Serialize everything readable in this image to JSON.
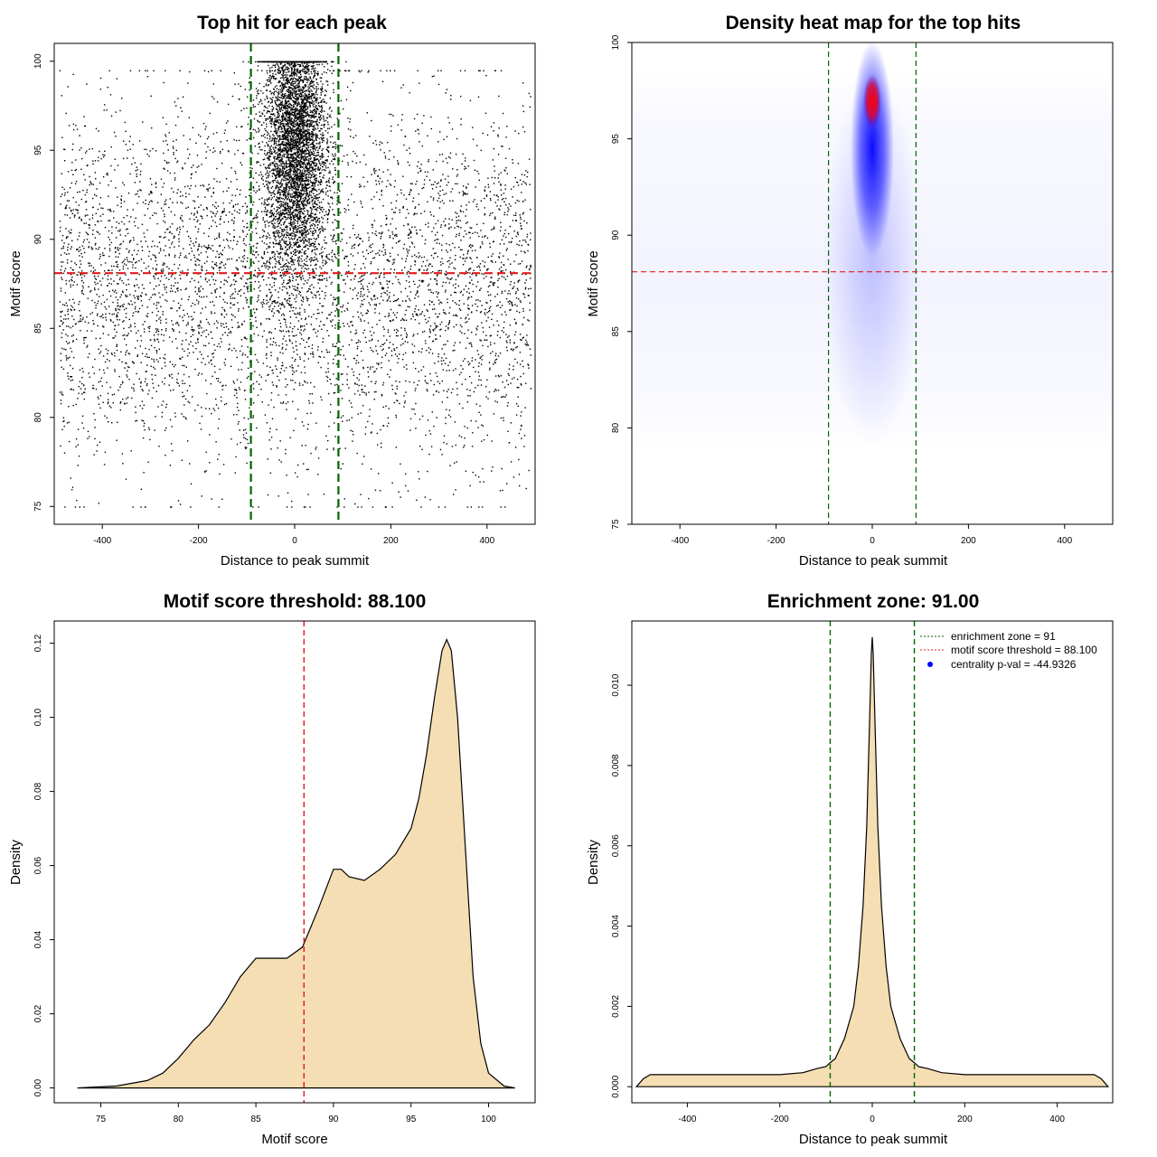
{
  "chart_data": [
    {
      "type": "scatter",
      "title": "Top hit for each peak",
      "xlabel": "Distance to peak summit",
      "ylabel": "Motif score",
      "xlim": [
        -500,
        500
      ],
      "ylim": [
        74,
        101
      ],
      "xticks": [
        "-400",
        "-200",
        "0",
        "200",
        "400"
      ],
      "yticks": [
        "75",
        "80",
        "85",
        "90",
        "95",
        "100"
      ],
      "vlines": [
        -91,
        91
      ],
      "hline": 88.1,
      "vline_color": "#006400",
      "hline_color": "#e31a1c",
      "point_color": "#000000",
      "background_points": {
        "count": 5200,
        "x_range": [
          -490,
          490
        ],
        "y_center": 87.5,
        "y_sd": 5,
        "y_range": [
          75,
          99.5
        ]
      },
      "central_cluster": {
        "count": 4800,
        "x_center": 0,
        "x_sd": 32,
        "y_center": 95.5,
        "y_sd": 3.8,
        "y_range": [
          82,
          100
        ]
      }
    },
    {
      "type": "heatmap",
      "title": "Density heat map for the top hits",
      "xlabel": "Distance to peak summit",
      "ylabel": "Motif score",
      "xlim": [
        -500,
        500
      ],
      "ylim": [
        75,
        100
      ],
      "xticks": [
        "-400",
        "-200",
        "0",
        "200",
        "400"
      ],
      "yticks": [
        "75",
        "80",
        "85",
        "90",
        "95",
        "100"
      ],
      "vlines": [
        -91,
        91
      ],
      "hline": 88.1,
      "vline_color": "#006400",
      "hline_color": "#e31a1c",
      "hotspot": {
        "x": 0,
        "y": 97,
        "color_scale": [
          "#ffffff",
          "#0000ff",
          "#ff0000"
        ]
      }
    },
    {
      "type": "area",
      "title": "Motif score threshold: 88.100",
      "xlabel": "Motif score",
      "ylabel": "Density",
      "xlim": [
        72,
        103
      ],
      "ylim": [
        -0.004,
        0.126
      ],
      "xticks": [
        "75",
        "80",
        "85",
        "90",
        "95",
        "100"
      ],
      "yticks": [
        "0.00",
        "0.02",
        "0.04",
        "0.06",
        "0.08",
        "0.10",
        "0.12"
      ],
      "fill": "#f5deb3",
      "vline": 88.1,
      "vline_color": "#e31a1c",
      "x": [
        73.5,
        76,
        78,
        79,
        80,
        81,
        82,
        83,
        84,
        85,
        86,
        87,
        88,
        89,
        90,
        90.5,
        91,
        92,
        93,
        94,
        95,
        95.5,
        96,
        96.5,
        97,
        97.3,
        97.6,
        98,
        98.5,
        99,
        99.5,
        100,
        101,
        101.7
      ],
      "y": [
        0,
        0.0005,
        0.002,
        0.004,
        0.008,
        0.013,
        0.017,
        0.023,
        0.03,
        0.035,
        0.035,
        0.035,
        0.038,
        0.048,
        0.059,
        0.059,
        0.057,
        0.056,
        0.059,
        0.063,
        0.07,
        0.078,
        0.09,
        0.105,
        0.118,
        0.121,
        0.118,
        0.1,
        0.065,
        0.03,
        0.012,
        0.004,
        0.0005,
        0
      ]
    },
    {
      "type": "area",
      "title": "Enrichment zone: 91.00",
      "xlabel": "Distance to peak summit",
      "ylabel": "Density",
      "xlim": [
        -520,
        520
      ],
      "ylim": [
        -0.0004,
        0.0116
      ],
      "xticks": [
        "-400",
        "-200",
        "0",
        "200",
        "400"
      ],
      "yticks": [
        "0.000",
        "0.002",
        "0.004",
        "0.006",
        "0.008",
        "0.010"
      ],
      "fill": "#f5deb3",
      "vlines": [
        -91,
        91
      ],
      "vline_color": "#006400",
      "x": [
        -510,
        -495,
        -480,
        -460,
        -400,
        -300,
        -200,
        -150,
        -120,
        -100,
        -91,
        -80,
        -60,
        -40,
        -30,
        -20,
        -12,
        -6,
        -2,
        0,
        2,
        6,
        12,
        20,
        30,
        40,
        60,
        80,
        91,
        100,
        120,
        150,
        200,
        300,
        400,
        480,
        495,
        510
      ],
      "y": [
        0,
        0.0002,
        0.0003,
        0.0003,
        0.0003,
        0.0003,
        0.0003,
        0.00035,
        0.00045,
        0.0005,
        0.0006,
        0.0007,
        0.0012,
        0.002,
        0.003,
        0.0045,
        0.0065,
        0.009,
        0.0108,
        0.0112,
        0.0108,
        0.009,
        0.0065,
        0.0045,
        0.003,
        0.002,
        0.0012,
        0.0007,
        0.0006,
        0.0005,
        0.00045,
        0.00035,
        0.0003,
        0.0003,
        0.0003,
        0.0003,
        0.0002,
        0
      ],
      "legend": [
        {
          "label": "enrichment zone = 91",
          "color": "#006400",
          "style": "dotted"
        },
        {
          "label": "motif score threshold = 88.100",
          "color": "#e31a1c",
          "style": "dotted"
        },
        {
          "label": "centrality p-val = -44.9326",
          "color": "#0000ff",
          "style": "point"
        }
      ]
    }
  ]
}
